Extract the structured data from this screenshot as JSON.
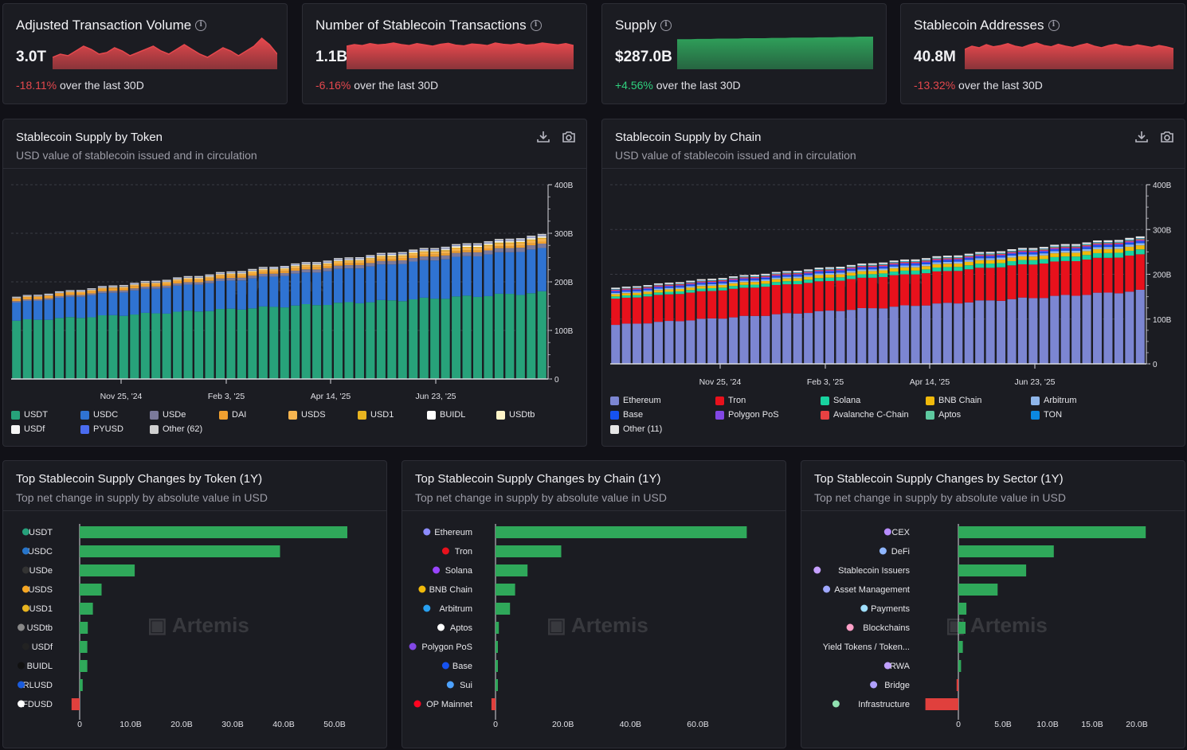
{
  "stats": [
    {
      "title": "Adjusted Transaction Volume",
      "value": "3.0T",
      "change": "-18.11%",
      "change_suffix": " over the last 30D",
      "trend": "neg",
      "color": "#e5484d",
      "spark": [
        0.35,
        0.45,
        0.4,
        0.55,
        0.7,
        0.6,
        0.45,
        0.5,
        0.65,
        0.55,
        0.4,
        0.5,
        0.6,
        0.7,
        0.55,
        0.45,
        0.6,
        0.75,
        0.6,
        0.45,
        0.35,
        0.5,
        0.65,
        0.55,
        0.4,
        0.55,
        0.7,
        0.95,
        0.75,
        0.45
      ]
    },
    {
      "title": "Number of Stablecoin Transactions",
      "value": "1.1B",
      "change": "-6.16%",
      "change_suffix": " over the last 30D",
      "trend": "neg",
      "color": "#e5484d",
      "spark": [
        0.7,
        0.75,
        0.72,
        0.78,
        0.74,
        0.76,
        0.8,
        0.75,
        0.72,
        0.78,
        0.74,
        0.7,
        0.76,
        0.79,
        0.73,
        0.71,
        0.77,
        0.75,
        0.72,
        0.8,
        0.76,
        0.74,
        0.78,
        0.73,
        0.75,
        0.8,
        0.77,
        0.74,
        0.78,
        0.72
      ]
    },
    {
      "title": "Supply",
      "value": "$287.0B",
      "change": "+4.56%",
      "change_suffix": " over the last 30D",
      "trend": "pos",
      "color": "#2fa05a",
      "spark": [
        0.9,
        0.9,
        0.9,
        0.91,
        0.91,
        0.91,
        0.92,
        0.92,
        0.92,
        0.92,
        0.93,
        0.93,
        0.93,
        0.93,
        0.94,
        0.94,
        0.94,
        0.95,
        0.95,
        0.95,
        0.95,
        0.96,
        0.96,
        0.96,
        0.97,
        0.97,
        0.97,
        0.98,
        0.98,
        0.98
      ]
    },
    {
      "title": "Stablecoin Addresses",
      "value": "40.8M",
      "change": "-13.32%",
      "change_suffix": " over the last 30D",
      "trend": "neg",
      "color": "#e5484d",
      "spark": [
        0.6,
        0.7,
        0.65,
        0.75,
        0.68,
        0.72,
        0.78,
        0.7,
        0.66,
        0.74,
        0.8,
        0.72,
        0.68,
        0.76,
        0.7,
        0.66,
        0.73,
        0.78,
        0.7,
        0.65,
        0.72,
        0.76,
        0.7,
        0.68,
        0.74,
        0.7,
        0.66,
        0.72,
        0.68,
        0.62
      ]
    }
  ],
  "token_panel": {
    "title": "Stablecoin Supply by Token",
    "subtitle": "USD value of stablecoin issued and in circulation",
    "watermark": "Artemis"
  },
  "chain_panel": {
    "title": "Stablecoin Supply by Chain",
    "subtitle": "USD value of stablecoin issued and in circulation",
    "watermark": "Artemis"
  },
  "changes_panels": [
    {
      "title": "Top Stablecoin Supply Changes by Token (1Y)",
      "subtitle": "Top net change in supply by absolute value in USD",
      "watermark": "Artemis"
    },
    {
      "title": "Top Stablecoin Supply Changes by Chain (1Y)",
      "subtitle": "Top net change in supply by absolute value in USD",
      "watermark": "Artemis"
    },
    {
      "title": "Top Stablecoin Supply Changes by Sector (1Y)",
      "subtitle": "Top net change in supply by absolute value in USD",
      "watermark": "Artemis"
    }
  ],
  "chart_data": [
    {
      "type": "bar",
      "stacked": true,
      "title": "Stablecoin Supply by Token",
      "x_tick_labels": [
        "Nov 25, '24",
        "Feb 3, '25",
        "Apr 14, '25",
        "Jun 23, '25"
      ],
      "y_tick_labels": [
        "0",
        "100B",
        "200B",
        "300B",
        "400B"
      ],
      "ylim": [
        0,
        400
      ],
      "unit": "B",
      "series": [
        {
          "name": "USDT",
          "color": "#27a27a",
          "start": 120,
          "end": 178
        },
        {
          "name": "USDC",
          "color": "#2f73d2",
          "start": 37,
          "end": 90
        },
        {
          "name": "USDe",
          "color": "#7b7a9c",
          "start": 3,
          "end": 9
        },
        {
          "name": "DAI",
          "color": "#f0a030",
          "start": 5,
          "end": 4
        },
        {
          "name": "USDS",
          "color": "#f5b450",
          "start": 1,
          "end": 6
        },
        {
          "name": "USD1",
          "color": "#e8b420",
          "start": 0,
          "end": 2
        },
        {
          "name": "BUIDL",
          "color": "#ffffff",
          "start": 0.5,
          "end": 2
        },
        {
          "name": "USDtb",
          "color": "#fff4c8",
          "start": 0,
          "end": 1
        },
        {
          "name": "USDf",
          "color": "#f5f5f5",
          "start": 0,
          "end": 1
        },
        {
          "name": "PYUSD",
          "color": "#4a6cf0",
          "start": 0.5,
          "end": 1
        },
        {
          "name": "Other (62)",
          "color": "#d0d0d0",
          "start": 2,
          "end": 3
        }
      ],
      "legend": [
        "USDT",
        "USDC",
        "USDe",
        "DAI",
        "USDS",
        "USD1",
        "BUIDL",
        "USDtb",
        "USDf",
        "PYUSD",
        "Other (62)"
      ],
      "bar_count": 50
    },
    {
      "type": "bar",
      "stacked": true,
      "title": "Stablecoin Supply by Chain",
      "x_tick_labels": [
        "Nov 25, '24",
        "Feb 3, '25",
        "Apr 14, '25",
        "Jun 23, '25"
      ],
      "y_tick_labels": [
        "0",
        "100B",
        "200B",
        "300B",
        "400B"
      ],
      "ylim": [
        0,
        400
      ],
      "unit": "B",
      "series": [
        {
          "name": "Ethereum",
          "color": "#7c86d2",
          "start": 87,
          "end": 163
        },
        {
          "name": "Tron",
          "color": "#e8111c",
          "start": 58,
          "end": 80
        },
        {
          "name": "Solana",
          "color": "#18d3a0",
          "start": 5,
          "end": 11
        },
        {
          "name": "BNB Chain",
          "color": "#f0b90b",
          "start": 5,
          "end": 9
        },
        {
          "name": "Arbitrum",
          "color": "#8fb6ea",
          "start": 3,
          "end": 5
        },
        {
          "name": "Base",
          "color": "#1652f0",
          "start": 3,
          "end": 4
        },
        {
          "name": "Polygon PoS",
          "color": "#8247e5",
          "start": 2,
          "end": 2.5
        },
        {
          "name": "Avalanche C-Chain",
          "color": "#e84142",
          "start": 2,
          "end": 2
        },
        {
          "name": "Aptos",
          "color": "#5ec9a0",
          "start": 0.5,
          "end": 1.5
        },
        {
          "name": "TON",
          "color": "#0b88e0",
          "start": 1,
          "end": 1
        },
        {
          "name": "Other (11)",
          "color": "#e6e6e6",
          "start": 3,
          "end": 4
        }
      ],
      "legend": [
        "Ethereum",
        "Tron",
        "Solana",
        "BNB Chain",
        "Arbitrum",
        "Base",
        "Polygon PoS",
        "Avalanche C-Chain",
        "Aptos",
        "TON",
        "Other (11)"
      ],
      "bar_count": 50
    },
    {
      "type": "bar",
      "orientation": "horizontal",
      "title": "Top Stablecoin Supply Changes by Token (1Y)",
      "categories": [
        "USDT",
        "USDC",
        "USDe",
        "USDS",
        "USD1",
        "USDtb",
        "USDf",
        "BUIDL",
        "RLUSD",
        "FDUSD"
      ],
      "values": [
        52.5,
        39.3,
        10.8,
        4.3,
        2.6,
        1.6,
        1.5,
        1.5,
        0.6,
        -1.6
      ],
      "icon_colors": [
        "#26a17b",
        "#2775ca",
        "#333333",
        "#f5a623",
        "#e8b420",
        "#888888",
        "#222222",
        "#111111",
        "#1a5bdc",
        "#ffffff"
      ],
      "x_tick_labels": [
        "0",
        "10.0B",
        "20.0B",
        "30.0B",
        "40.0B",
        "50.0B"
      ],
      "xlim": [
        -1.6,
        55
      ]
    },
    {
      "type": "bar",
      "orientation": "horizontal",
      "title": "Top Stablecoin Supply Changes by Chain (1Y)",
      "categories": [
        "Ethereum",
        "Tron",
        "Solana",
        "BNB Chain",
        "Arbitrum",
        "Aptos",
        "Polygon PoS",
        "Base",
        "Sui",
        "OP Mainnet"
      ],
      "values": [
        74.5,
        19.5,
        9.5,
        5.8,
        4.3,
        1.0,
        0.7,
        0.7,
        0.7,
        -1.2
      ],
      "icon_colors": [
        "#8c8cff",
        "#e8111c",
        "#9945ff",
        "#f0b90b",
        "#28a0f0",
        "#ffffff",
        "#8247e5",
        "#1652f0",
        "#4da2ff",
        "#ff0420"
      ],
      "x_tick_labels": [
        "0",
        "20.0B",
        "40.0B",
        "60.0B"
      ],
      "xlim": [
        -1.2,
        82
      ]
    },
    {
      "type": "bar",
      "orientation": "horizontal",
      "title": "Top Stablecoin Supply Changes by Sector (1Y)",
      "categories": [
        "CEX",
        "DeFi",
        "Stablecoin Issuers",
        "Asset Management",
        "Payments",
        "Blockchains",
        "Yield Tokens / Token...",
        "RWA",
        "Bridge",
        "Infrastructure"
      ],
      "values": [
        21.0,
        10.7,
        7.6,
        4.4,
        0.9,
        0.8,
        0.5,
        0.3,
        -0.2,
        -3.7
      ],
      "icon_colors": [
        "#b78cff",
        "#8fb6ff",
        "#c6a0ff",
        "#9fa8ff",
        "#a0e0ff",
        "#ffa0c8",
        "#a0d8ff",
        "#c0a0ff",
        "#b0a0ff",
        "#90e0b0"
      ],
      "x_tick_labels": [
        "0",
        "5.0B",
        "10.0B",
        "15.0B",
        "20.0B"
      ],
      "xlim": [
        -3.7,
        23
      ]
    }
  ]
}
